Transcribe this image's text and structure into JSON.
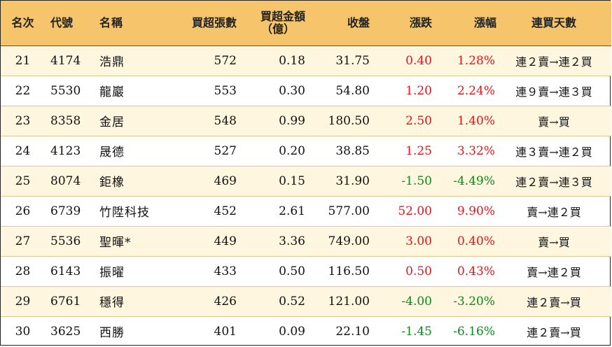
{
  "headers": {
    "rank": "名次",
    "code": "代號",
    "name": "名稱",
    "net_buy_lots": "買超張數",
    "net_buy_amount_line1": "買超金額",
    "net_buy_amount_line2": "（億）",
    "close": "收盤",
    "change": "漲跌",
    "change_pct": "漲幅",
    "consecutive": "連買天數"
  },
  "colors": {
    "header_bg": "#f6c56b",
    "shade_row": "#fef6de",
    "up": "#e8141a",
    "down": "#0b8a1c"
  },
  "rows": [
    {
      "rank": "21",
      "code": "4174",
      "name": "浩鼎",
      "lots": "572",
      "amount": "0.18",
      "close": "31.75",
      "change": "0.40",
      "pct": "1.28%",
      "trend": "連２賣→連２買",
      "dir": "up"
    },
    {
      "rank": "22",
      "code": "5530",
      "name": "龍巖",
      "lots": "553",
      "amount": "0.30",
      "close": "54.80",
      "change": "1.20",
      "pct": "2.24%",
      "trend": "連９賣→連３買",
      "dir": "up"
    },
    {
      "rank": "23",
      "code": "8358",
      "name": "金居",
      "lots": "548",
      "amount": "0.99",
      "close": "180.50",
      "change": "2.50",
      "pct": "1.40%",
      "trend": "賣→買",
      "dir": "up"
    },
    {
      "rank": "24",
      "code": "4123",
      "name": "晟德",
      "lots": "527",
      "amount": "0.20",
      "close": "38.85",
      "change": "1.25",
      "pct": "3.32%",
      "trend": "連３賣→連２買",
      "dir": "up"
    },
    {
      "rank": "25",
      "code": "8074",
      "name": "鉅橡",
      "lots": "469",
      "amount": "0.15",
      "close": "31.90",
      "change": "-1.50",
      "pct": "-4.49%",
      "trend": "連２賣→連３買",
      "dir": "down"
    },
    {
      "rank": "26",
      "code": "6739",
      "name": "竹陞科技",
      "lots": "452",
      "amount": "2.61",
      "close": "577.00",
      "change": "52.00",
      "pct": "9.90%",
      "trend": "賣→連２買",
      "dir": "up"
    },
    {
      "rank": "27",
      "code": "5536",
      "name": "聖暉*",
      "lots": "449",
      "amount": "3.36",
      "close": "749.00",
      "change": "3.00",
      "pct": "0.40%",
      "trend": "賣→買",
      "dir": "up"
    },
    {
      "rank": "28",
      "code": "6143",
      "name": "振曜",
      "lots": "433",
      "amount": "0.50",
      "close": "116.50",
      "change": "0.50",
      "pct": "0.43%",
      "trend": "賣→連２買",
      "dir": "up"
    },
    {
      "rank": "29",
      "code": "6761",
      "name": "穩得",
      "lots": "426",
      "amount": "0.52",
      "close": "121.00",
      "change": "-4.00",
      "pct": "-3.20%",
      "trend": "連２賣→買",
      "dir": "down"
    },
    {
      "rank": "30",
      "code": "3625",
      "name": "西勝",
      "lots": "401",
      "amount": "0.09",
      "close": "22.10",
      "change": "-1.45",
      "pct": "-6.16%",
      "trend": "連２賣→買",
      "dir": "down"
    }
  ]
}
